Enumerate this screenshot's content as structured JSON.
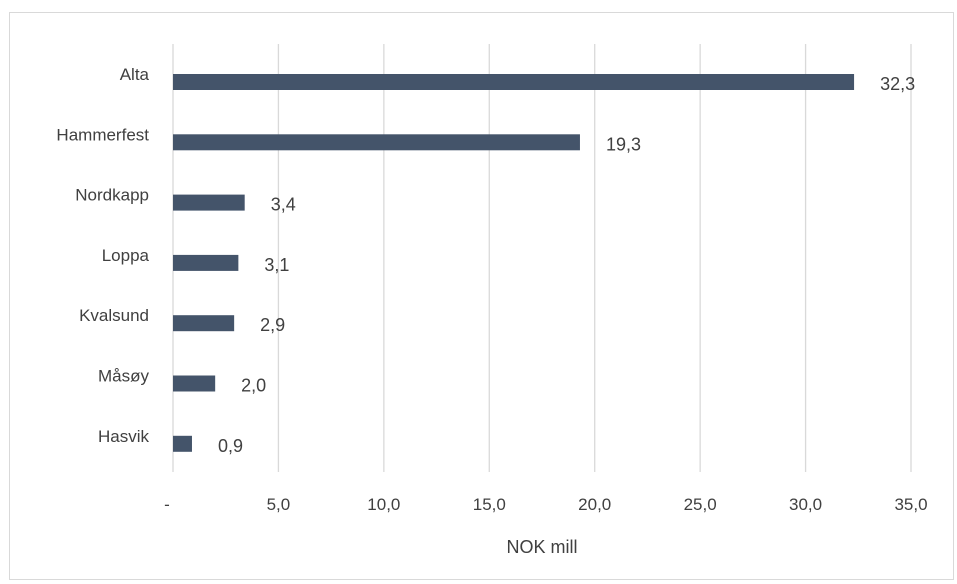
{
  "chart_data": {
    "type": "bar",
    "orientation": "horizontal",
    "categories": [
      "Alta",
      "Hammerfest",
      "Nordkapp",
      "Loppa",
      "Kvalsund",
      "Måsøy",
      "Hasvik"
    ],
    "values": [
      32.3,
      19.3,
      3.4,
      3.1,
      2.9,
      2.0,
      0.9
    ],
    "data_labels": [
      "32,3",
      "19,3",
      "3,4",
      "3,1",
      "2,9",
      "2,0",
      "0,9"
    ],
    "xlabel": "NOK mill",
    "ylabel": "",
    "xlim": [
      0,
      35
    ],
    "x_ticks": [
      0,
      5,
      10,
      15,
      20,
      25,
      30,
      35
    ],
    "x_tick_labels": [
      "-",
      "5,0",
      "10,0",
      "15,0",
      "20,0",
      "25,0",
      "30,0",
      "35,0"
    ],
    "grid": "vertical",
    "bar_color": "#44546a",
    "grid_color": "#d9d9d9",
    "legend": "none"
  }
}
